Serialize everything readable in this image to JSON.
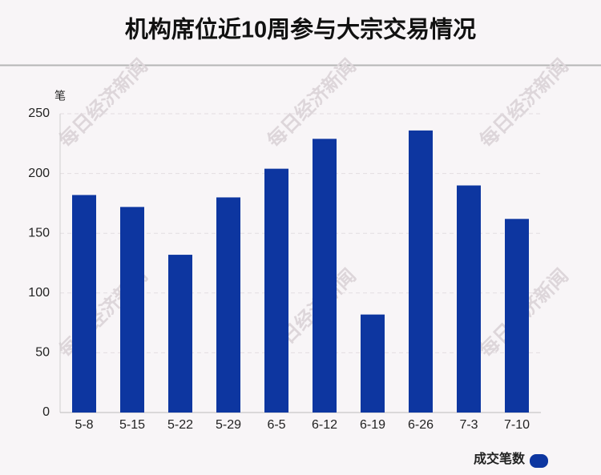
{
  "chart_data": {
    "type": "bar",
    "title": "机构席位近10周参与大宗交易情况",
    "y_label": "笔",
    "categories": [
      "5-8",
      "5-15",
      "5-22",
      "5-29",
      "6-5",
      "6-12",
      "6-19",
      "6-26",
      "7-3",
      "7-10"
    ],
    "series": [
      {
        "name": "成交笔数",
        "color": "#0d36a0",
        "values": [
          182,
          172,
          132,
          180,
          204,
          229,
          82,
          236,
          190,
          162
        ]
      }
    ],
    "ylim": [
      0,
      250
    ],
    "yticks": [
      0,
      50,
      100,
      150,
      200,
      250
    ],
    "grid": true,
    "legend": "bottom-right",
    "watermark": "每日经济新闻"
  }
}
